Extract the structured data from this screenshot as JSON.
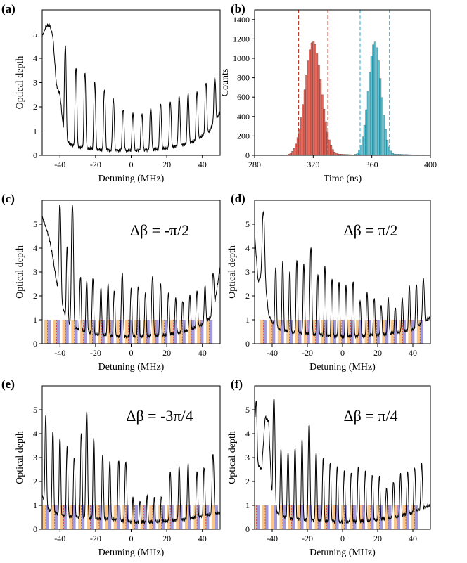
{
  "figure": {
    "panels": [
      "a",
      "b",
      "c",
      "d",
      "e",
      "f"
    ]
  },
  "chart_data": [
    {
      "id": "a",
      "label": "(a)",
      "type": "line",
      "xlabel": "Detuning (MHz)",
      "ylabel": "Optical depth",
      "xlim": [
        -50,
        50
      ],
      "ylim": [
        0,
        6
      ],
      "xticks": [
        -40,
        -20,
        0,
        20,
        40
      ],
      "yticks": [
        0,
        1,
        2,
        3,
        4,
        5
      ],
      "annotation": "",
      "baseline": [
        [
          -50,
          4.9
        ],
        [
          -48,
          5.3
        ],
        [
          -46,
          5.4
        ],
        [
          -44,
          4.9
        ],
        [
          -42,
          2.9
        ],
        [
          -40,
          2.5
        ],
        [
          -38,
          1.0
        ],
        [
          -36,
          0.6
        ],
        [
          -34,
          0.45
        ],
        [
          -30,
          0.35
        ],
        [
          -26,
          0.3
        ],
        [
          -20,
          0.25
        ],
        [
          -10,
          0.2
        ],
        [
          0,
          0.2
        ],
        [
          10,
          0.22
        ],
        [
          20,
          0.3
        ],
        [
          30,
          0.45
        ],
        [
          36,
          0.6
        ],
        [
          40,
          0.8
        ],
        [
          44,
          1.0
        ],
        [
          46,
          1.3
        ],
        [
          48,
          1.5
        ],
        [
          50,
          1.8
        ]
      ],
      "peaks": [
        {
          "x": -37,
          "h": 4.5,
          "w": 0.7
        },
        {
          "x": -31,
          "h": 3.6,
          "w": 0.7
        },
        {
          "x": -26,
          "h": 3.4,
          "w": 0.7
        },
        {
          "x": -20.5,
          "h": 3.0,
          "w": 0.7
        },
        {
          "x": -15,
          "h": 2.7,
          "w": 0.7
        },
        {
          "x": -10,
          "h": 2.3,
          "w": 0.7
        },
        {
          "x": -4.5,
          "h": 1.9,
          "w": 0.7
        },
        {
          "x": 1,
          "h": 1.7,
          "w": 0.7
        },
        {
          "x": 6,
          "h": 1.7,
          "w": 0.7
        },
        {
          "x": 11,
          "h": 1.95,
          "w": 0.7
        },
        {
          "x": 16.5,
          "h": 2.1,
          "w": 0.7
        },
        {
          "x": 22,
          "h": 2.2,
          "w": 0.7
        },
        {
          "x": 27,
          "h": 2.4,
          "w": 0.7
        },
        {
          "x": 32,
          "h": 2.5,
          "w": 0.7
        },
        {
          "x": 37,
          "h": 2.6,
          "w": 0.7
        },
        {
          "x": 42,
          "h": 3.0,
          "w": 0.7
        },
        {
          "x": 47,
          "h": 3.2,
          "w": 0.7
        }
      ]
    },
    {
      "id": "b",
      "label": "(b)",
      "type": "bar",
      "xlabel": "Time (ns)",
      "ylabel": "Counts",
      "xlim": [
        280,
        400
      ],
      "ylim": [
        0,
        1500
      ],
      "xticks": [
        280,
        320,
        360,
        400
      ],
      "yticks": [
        0,
        200,
        400,
        600,
        800,
        1000,
        1200,
        1400
      ],
      "series": [
        {
          "name": "red",
          "color": "#e8675b",
          "center": 320,
          "sigma": 5.5,
          "peak": 1180
        },
        {
          "name": "blue",
          "color": "#5bc5d8",
          "center": 362,
          "sigma": 4.3,
          "peak": 1170
        }
      ],
      "red_lines": [
        310,
        330
      ],
      "blue_lines": [
        352,
        372
      ],
      "line_colors": {
        "red": "#c0392b",
        "blue": "#4fb3d9"
      }
    },
    {
      "id": "c",
      "label": "(c)",
      "type": "line",
      "xlabel": "Detuning (MHz)",
      "ylabel": "Optical depth",
      "xlim": [
        -50,
        50
      ],
      "ylim": [
        0,
        6
      ],
      "xticks": [
        -40,
        -20,
        0,
        20,
        40
      ],
      "yticks": [
        0,
        1,
        2,
        3,
        4,
        5
      ],
      "annotation": "Δβ = -π/2",
      "baseline": [
        [
          -50,
          5.3
        ],
        [
          -48,
          4.9
        ],
        [
          -46,
          4.4
        ],
        [
          -44,
          3.6
        ],
        [
          -42,
          2.6
        ],
        [
          -40,
          2.0
        ],
        [
          -38,
          1.4
        ],
        [
          -36,
          1.0
        ],
        [
          -34,
          0.8
        ],
        [
          -30,
          0.6
        ],
        [
          -20,
          0.4
        ],
        [
          -10,
          0.32
        ],
        [
          0,
          0.3
        ],
        [
          10,
          0.32
        ],
        [
          20,
          0.37
        ],
        [
          30,
          0.5
        ],
        [
          40,
          0.8
        ],
        [
          46,
          1.2
        ],
        [
          50,
          3.2
        ]
      ],
      "peaks": [
        {
          "x": -40,
          "h": 5.8,
          "w": 0.8
        },
        {
          "x": -36,
          "h": 4.0,
          "w": 0.6
        },
        {
          "x": -33,
          "h": 5.8,
          "w": 0.8
        },
        {
          "x": -28.5,
          "h": 2.8,
          "w": 0.6
        },
        {
          "x": -25,
          "h": 2.6,
          "w": 0.6
        },
        {
          "x": -21.5,
          "h": 2.7,
          "w": 0.6
        },
        {
          "x": -17,
          "h": 2.3,
          "w": 0.6
        },
        {
          "x": -13,
          "h": 2.5,
          "w": 0.6
        },
        {
          "x": -9.5,
          "h": 2.2,
          "w": 0.6
        },
        {
          "x": -5,
          "h": 2.9,
          "w": 0.7
        },
        {
          "x": 0,
          "h": 2.3,
          "w": 0.6
        },
        {
          "x": 4,
          "h": 2.4,
          "w": 0.6
        },
        {
          "x": 8,
          "h": 2.1,
          "w": 0.6
        },
        {
          "x": 12,
          "h": 2.8,
          "w": 0.7
        },
        {
          "x": 16.5,
          "h": 2.5,
          "w": 0.6
        },
        {
          "x": 21,
          "h": 2.1,
          "w": 0.6
        },
        {
          "x": 25,
          "h": 1.9,
          "w": 0.6
        },
        {
          "x": 29,
          "h": 1.8,
          "w": 0.6
        },
        {
          "x": 33,
          "h": 2.0,
          "w": 0.6
        },
        {
          "x": 37,
          "h": 2.2,
          "w": 0.6
        },
        {
          "x": 41.5,
          "h": 2.4,
          "w": 0.6
        },
        {
          "x": 46,
          "h": 2.9,
          "w": 0.7
        }
      ],
      "comb": {
        "start": -47,
        "step": 5.05,
        "count": 19,
        "height": 1
      }
    },
    {
      "id": "d",
      "label": "(d)",
      "type": "line",
      "xlabel": "Detuning (MHz)",
      "ylabel": "Optical depth",
      "xlim": [
        -50,
        50
      ],
      "ylim": [
        0,
        6
      ],
      "xticks": [
        -40,
        -20,
        0,
        20,
        40
      ],
      "yticks": [
        0,
        1,
        2,
        3,
        4,
        5
      ],
      "annotation": "Δβ = π/2",
      "baseline": [
        [
          -50,
          4.6
        ],
        [
          -48,
          2.6
        ],
        [
          -46,
          2.9
        ],
        [
          -44,
          2.6
        ],
        [
          -42,
          1.2
        ],
        [
          -40,
          0.9
        ],
        [
          -36,
          0.6
        ],
        [
          -30,
          0.5
        ],
        [
          -20,
          0.42
        ],
        [
          -10,
          0.35
        ],
        [
          0,
          0.3
        ],
        [
          10,
          0.32
        ],
        [
          20,
          0.37
        ],
        [
          30,
          0.45
        ],
        [
          40,
          0.6
        ],
        [
          46,
          0.9
        ],
        [
          50,
          1.1
        ]
      ],
      "peaks": [
        {
          "x": -45,
          "h": 5.5,
          "w": 0.9
        },
        {
          "x": -38,
          "h": 3.2,
          "w": 0.6
        },
        {
          "x": -34,
          "h": 3.4,
          "w": 0.6
        },
        {
          "x": -30,
          "h": 3.0,
          "w": 0.6
        },
        {
          "x": -26,
          "h": 3.5,
          "w": 0.6
        },
        {
          "x": -22,
          "h": 3.3,
          "w": 0.6
        },
        {
          "x": -18,
          "h": 4.0,
          "w": 0.7
        },
        {
          "x": -14,
          "h": 2.9,
          "w": 0.6
        },
        {
          "x": -10,
          "h": 3.2,
          "w": 0.6
        },
        {
          "x": -6,
          "h": 2.7,
          "w": 0.6
        },
        {
          "x": -2,
          "h": 2.6,
          "w": 0.6
        },
        {
          "x": 2,
          "h": 2.4,
          "w": 0.6
        },
        {
          "x": 6,
          "h": 2.6,
          "w": 0.6
        },
        {
          "x": 10,
          "h": 1.8,
          "w": 0.6
        },
        {
          "x": 14,
          "h": 2.1,
          "w": 0.6
        },
        {
          "x": 18,
          "h": 1.9,
          "w": 0.6
        },
        {
          "x": 22,
          "h": 1.6,
          "w": 0.6
        },
        {
          "x": 26,
          "h": 1.9,
          "w": 0.6
        },
        {
          "x": 30,
          "h": 1.5,
          "w": 0.6
        },
        {
          "x": 34,
          "h": 1.9,
          "w": 0.6
        },
        {
          "x": 38,
          "h": 2.4,
          "w": 0.6
        },
        {
          "x": 42,
          "h": 2.5,
          "w": 0.6
        },
        {
          "x": 46,
          "h": 2.7,
          "w": 0.7
        }
      ],
      "comb": {
        "start": -45,
        "step": 4.95,
        "count": 19,
        "height": 1
      }
    },
    {
      "id": "e",
      "label": "(e)",
      "type": "line",
      "xlabel": "Detuning (MHz)",
      "ylabel": "Optical depth",
      "xlim": [
        -50,
        50
      ],
      "ylim": [
        0,
        6
      ],
      "xticks": [
        -40,
        -20,
        0,
        20,
        40
      ],
      "yticks": [
        0,
        1,
        2,
        3,
        4,
        5
      ],
      "annotation": "Δβ = -3π/4",
      "baseline": [
        [
          -50,
          1.4
        ],
        [
          -46,
          0.8
        ],
        [
          -40,
          0.6
        ],
        [
          -30,
          0.5
        ],
        [
          -20,
          0.45
        ],
        [
          -10,
          0.42
        ],
        [
          0,
          0.3
        ],
        [
          10,
          0.3
        ],
        [
          20,
          0.35
        ],
        [
          30,
          0.42
        ],
        [
          40,
          0.55
        ],
        [
          50,
          0.7
        ]
      ],
      "peaks": [
        {
          "x": -48,
          "h": 4.7,
          "w": 0.6
        },
        {
          "x": -44,
          "h": 4.1,
          "w": 0.6
        },
        {
          "x": -40,
          "h": 3.8,
          "w": 0.6
        },
        {
          "x": -36,
          "h": 3.4,
          "w": 0.6
        },
        {
          "x": -32,
          "h": 3.0,
          "w": 0.6
        },
        {
          "x": -28,
          "h": 4.0,
          "w": 0.6
        },
        {
          "x": -25,
          "h": 4.9,
          "w": 0.7
        },
        {
          "x": -21,
          "h": 3.8,
          "w": 0.6
        },
        {
          "x": -16,
          "h": 3.1,
          "w": 0.6
        },
        {
          "x": -12,
          "h": 2.8,
          "w": 0.6
        },
        {
          "x": -7,
          "h": 2.9,
          "w": 0.6
        },
        {
          "x": -3,
          "h": 2.8,
          "w": 0.7
        },
        {
          "x": 1,
          "h": 1.3,
          "w": 0.5
        },
        {
          "x": 5,
          "h": 1.2,
          "w": 0.5
        },
        {
          "x": 9,
          "h": 1.4,
          "w": 0.5
        },
        {
          "x": 13,
          "h": 1.3,
          "w": 0.5
        },
        {
          "x": 17,
          "h": 1.4,
          "w": 0.5
        },
        {
          "x": 22,
          "h": 2.4,
          "w": 0.6
        },
        {
          "x": 27,
          "h": 2.6,
          "w": 0.6
        },
        {
          "x": 32,
          "h": 2.7,
          "w": 0.6
        },
        {
          "x": 37,
          "h": 2.4,
          "w": 0.6
        },
        {
          "x": 41,
          "h": 2.6,
          "w": 0.6
        },
        {
          "x": 46,
          "h": 3.1,
          "w": 0.7
        }
      ],
      "comb": {
        "start": -48,
        "step": 5.0,
        "count": 20,
        "height": 1
      }
    },
    {
      "id": "f",
      "label": "(f)",
      "type": "line",
      "xlabel": "Detuning (MHz)",
      "ylabel": "Optical depth",
      "xlim": [
        -50,
        50
      ],
      "ylim": [
        0,
        6
      ],
      "xticks": [
        -40,
        -20,
        0,
        20,
        40
      ],
      "yticks": [
        0,
        1,
        2,
        3,
        4,
        5
      ],
      "annotation": "Δβ = π/4",
      "baseline": [
        [
          -50,
          4.9
        ],
        [
          -48,
          2.7
        ],
        [
          -46,
          2.5
        ],
        [
          -44,
          4.7
        ],
        [
          -42,
          4.5
        ],
        [
          -40,
          1.0
        ],
        [
          -36,
          0.6
        ],
        [
          -30,
          0.45
        ],
        [
          -20,
          0.4
        ],
        [
          -10,
          0.35
        ],
        [
          0,
          0.3
        ],
        [
          10,
          0.33
        ],
        [
          20,
          0.4
        ],
        [
          30,
          0.5
        ],
        [
          40,
          0.7
        ],
        [
          46,
          0.9
        ],
        [
          50,
          1.0
        ]
      ],
      "peaks": [
        {
          "x": -49,
          "h": 5.3,
          "w": 0.5
        },
        {
          "x": -39,
          "h": 5.5,
          "w": 0.8
        },
        {
          "x": -35,
          "h": 3.3,
          "w": 0.6
        },
        {
          "x": -31,
          "h": 3.2,
          "w": 0.6
        },
        {
          "x": -27,
          "h": 3.4,
          "w": 0.6
        },
        {
          "x": -23,
          "h": 3.7,
          "w": 0.6
        },
        {
          "x": -19,
          "h": 4.4,
          "w": 0.7
        },
        {
          "x": -15,
          "h": 3.2,
          "w": 0.6
        },
        {
          "x": -11,
          "h": 2.9,
          "w": 0.6
        },
        {
          "x": -7,
          "h": 2.8,
          "w": 0.6
        },
        {
          "x": -3,
          "h": 2.6,
          "w": 0.6
        },
        {
          "x": 1,
          "h": 2.4,
          "w": 0.6
        },
        {
          "x": 5,
          "h": 2.4,
          "w": 0.6
        },
        {
          "x": 9,
          "h": 2.6,
          "w": 0.6
        },
        {
          "x": 13,
          "h": 2.4,
          "w": 0.6
        },
        {
          "x": 17,
          "h": 2.3,
          "w": 0.6
        },
        {
          "x": 21,
          "h": 2.2,
          "w": 0.6
        },
        {
          "x": 25,
          "h": 1.7,
          "w": 0.6
        },
        {
          "x": 29,
          "h": 2.0,
          "w": 0.6
        },
        {
          "x": 33,
          "h": 2.3,
          "w": 0.6
        },
        {
          "x": 37,
          "h": 2.4,
          "w": 0.6
        },
        {
          "x": 41,
          "h": 2.6,
          "w": 0.6
        },
        {
          "x": 45,
          "h": 2.7,
          "w": 0.6
        }
      ],
      "comb": {
        "start": -49,
        "step": 5.0,
        "count": 19,
        "height": 1
      }
    }
  ],
  "colors": {
    "trace": "#000000",
    "orange": "#f5b86a",
    "purple": "#8a7fd0",
    "red_bar": "#e8675b",
    "blue_bar": "#5bc5d8"
  }
}
